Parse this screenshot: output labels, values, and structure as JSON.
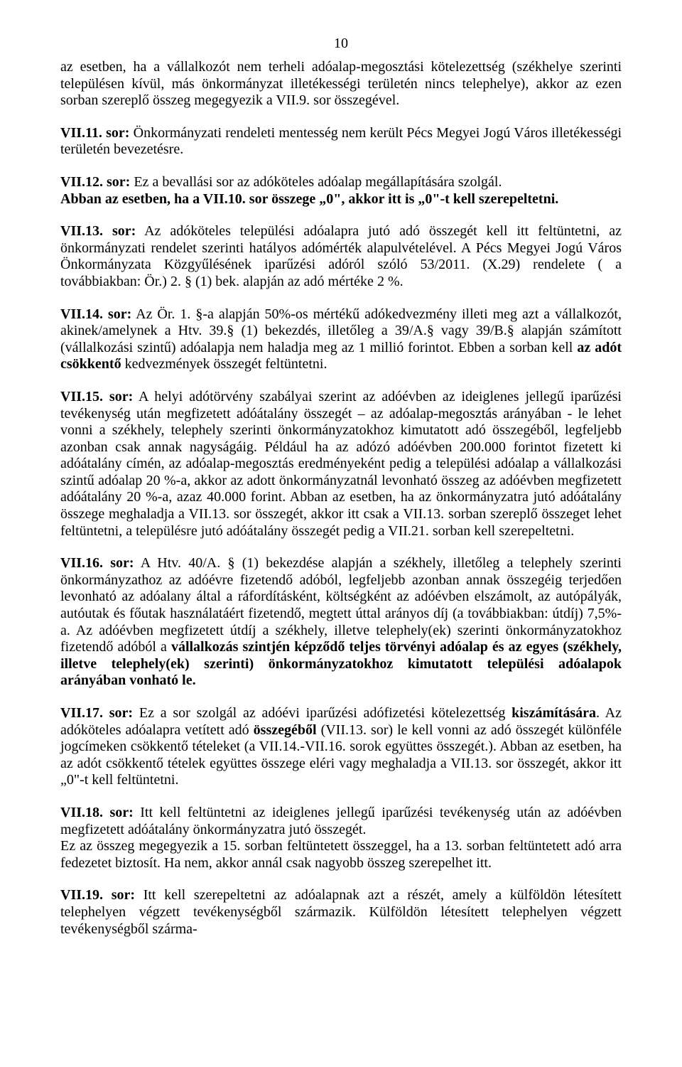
{
  "pageNumber": "10",
  "paragraphs": [
    {
      "spans": [
        {
          "t": "az esetben, ha a vállalkozót nem terheli adóalap-megosztási kötelezettség (székhelye szerinti településen kívül, más önkormányzat illetékességi területén nincs telephelye), akkor az ezen sorban szereplő összeg megegyezik a VII.9. sor összegével.",
          "b": false
        }
      ]
    },
    {
      "spans": [
        {
          "t": "VII.11. sor:",
          "b": true
        },
        {
          "t": " Önkormányzati rendeleti mentesség nem került Pécs Megyei Jogú Város illetékességi területén bevezetésre.",
          "b": false
        }
      ]
    },
    {
      "spans": [
        {
          "t": "VII.12. sor:",
          "b": true
        },
        {
          "t": " Ez a bevallási sor az adóköteles adóalap megállapítására szolgál.",
          "b": false
        },
        {
          "t": "\nAbban az esetben, ha a VII.10. sor összege „0\", akkor itt is „0\"-t kell szerepeltetni.",
          "b": true
        }
      ]
    },
    {
      "spans": [
        {
          "t": "VII.13. sor:",
          "b": true
        },
        {
          "t": " Az adóköteles települési adóalapra jutó adó összegét kell itt feltüntetni, az önkormányzati rendelet szerinti hatályos adómérték alapulvételével. A Pécs Megyei Jogú Város Önkormányzata Közgyűlésének iparűzési adóról szóló 53/2011. (X.29) rendelete ( a továbbiakban: Ör.) 2. § (1) bek. alapján az adó mértéke 2 %.",
          "b": false
        }
      ]
    },
    {
      "spans": [
        {
          "t": "VII.14. sor:",
          "b": true
        },
        {
          "t": " Az Ör. 1. §-a alapján 50%-os mértékű adókedvezmény illeti meg azt a vállalkozót, akinek/amelynek a Htv. 39.§ (1) bekezdés, illetőleg a 39/A.§ vagy 39/B.§ alapján számított (vállalkozási szintű) adóalapja nem haladja meg az 1 millió forintot. Ebben a sorban kell ",
          "b": false
        },
        {
          "t": "az adót csökkentő",
          "b": true
        },
        {
          "t": " kedvezmények összegét feltüntetni.",
          "b": false
        }
      ]
    },
    {
      "spans": [
        {
          "t": "VII.15. sor:",
          "b": true
        },
        {
          "t": " A helyi adótörvény szabályai szerint az adóévben az ideiglenes jellegű iparűzési tevékenység után megfizetett adóátalány összegét – az adóalap-megosztás arányában - le lehet vonni a székhely, telephely szerinti önkormányzatokhoz kimutatott adó összegéből, legfeljebb azonban csak annak nagyságáig. Például ha az adózó adóévben 200.000 forintot fizetett ki adóátalány címén, az adóalap-megosztás eredményeként pedig a települési adóalap a vállalkozási szintű adóalap 20 %-a, akkor az adott önkormányzatnál levonható összeg az adóévben megfizetett adóátalány 20 %-a, azaz 40.000 forint. Abban az esetben, ha az önkormányzatra jutó adóátalány összege meghaladja a VII.13. sor összegét, akkor itt csak a VII.13. sorban szereplő összeget lehet feltüntetni, a településre jutó adóátalány összegét pedig a VII.21. sorban kell szerepeltetni.",
          "b": false
        }
      ]
    },
    {
      "spans": [
        {
          "t": "VII.16. sor:",
          "b": true
        },
        {
          "t": " A Htv. 40/A. § (1) bekezdése alapján a székhely, illetőleg a telephely szerinti önkormányzathoz az adóévre fizetendő adóból, legfeljebb azonban annak összegéig terjedően levonható az adóalany által a ráfordításként, költségként az adóévben elszámolt, az autópályák, autóutak és főutak használatáért fizetendő, megtett úttal arányos díj (a továbbiakban: útdíj) 7,5%-a. Az adóévben megfizetett útdíj a székhely, illetve telephely(ek) szerinti önkormányzatokhoz fizetendő adóból a ",
          "b": false
        },
        {
          "t": "vállalkozás szintjén képződő teljes törvényi adóalap és az egyes (székhely, illetve telephely(ek) szerinti) önkormányzatokhoz kimutatott települési adóalapok arányában vonható le.",
          "b": true
        }
      ]
    },
    {
      "spans": [
        {
          "t": "VII.17. sor:",
          "b": true
        },
        {
          "t": " Ez a sor szolgál az adóévi iparűzési adófizetési kötelezettség ",
          "b": false
        },
        {
          "t": "kiszámítására",
          "b": true
        },
        {
          "t": ". Az adóköteles adóalapra vetített adó ",
          "b": false
        },
        {
          "t": "összegéből",
          "b": true
        },
        {
          "t": " (VII.13. sor) le kell vonni az adó összegét különféle jogcímeken csökkentő tételeket (a VII.14.-VII.16. sorok együttes összegét.). Abban az esetben, ha az adót csökkentő tételek együttes összege eléri vagy meghaladja a VII.13. sor összegét, akkor itt „0\"-t kell feltüntetni.",
          "b": false
        }
      ]
    },
    {
      "spans": [
        {
          "t": "VII.18. sor:",
          "b": true
        },
        {
          "t": " Itt kell feltüntetni az ideiglenes jellegű iparűzési tevékenység után az adóévben megfizetett adóátalány önkormányzatra jutó összegét.\nEz az összeg megegyezik a 15. sorban feltüntetett összeggel, ha a 13. sorban feltüntetett adó arra fedezetet biztosít. Ha nem, akkor annál csak nagyobb összeg szerepelhet itt.",
          "b": false
        }
      ]
    },
    {
      "spans": [
        {
          "t": "VII.19. sor:",
          "b": true
        },
        {
          "t": " Itt kell szerepeltetni az adóalapnak azt a részét, amely a külföldön létesített telephelyen végzett tevékenységből származik. Külföldön létesített telephelyen végzett tevékenységből szárma-",
          "b": false
        }
      ]
    }
  ]
}
